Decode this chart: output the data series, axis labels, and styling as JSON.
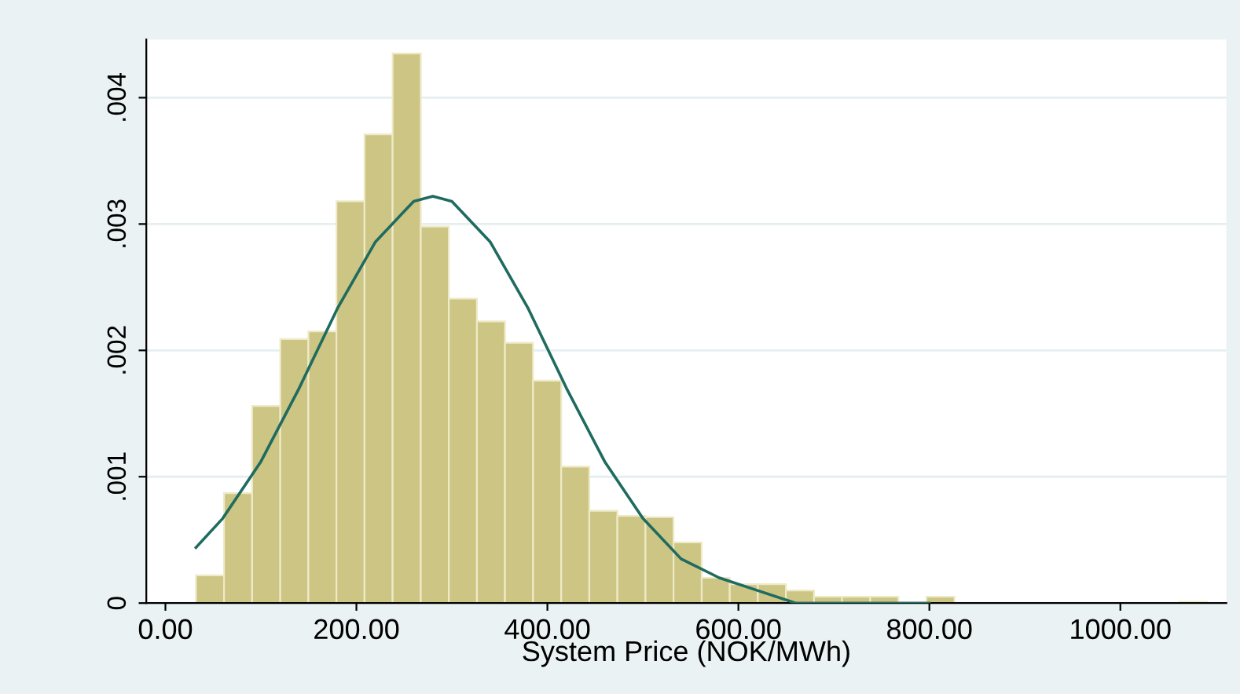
{
  "chart_data": {
    "type": "histogram",
    "xlabel": "System Price (NOK/MWh)",
    "bins": [
      32,
      61.4,
      90.8,
      120.3,
      149.7,
      179.1,
      208.5,
      237.9,
      267.4,
      296.8,
      326.2,
      355.6,
      385.0,
      414.5,
      443.9,
      473.3,
      502.7,
      532.1,
      561.6,
      591.0,
      620.4,
      649.8,
      679.2,
      708.7,
      738.1,
      767.5,
      796.9,
      826.3,
      855.8,
      885.2,
      914.6,
      944.0,
      973.4,
      1002.9,
      1032.3,
      1061.7,
      1091.1
    ],
    "values": [
      0.00022,
      0.00087,
      0.00156,
      0.00209,
      0.00215,
      0.00318,
      0.00371,
      0.00435,
      0.00298,
      0.00241,
      0.00223,
      0.00206,
      0.00176,
      0.00108,
      0.00073,
      0.00069,
      0.00068,
      0.00048,
      0.0002,
      0.00015,
      0.00015,
      0.0001,
      5e-05,
      5e-05,
      5e-05,
      0,
      5e-05,
      0,
      0,
      0,
      0,
      0,
      0,
      0,
      0,
      1e-05
    ],
    "color": "#cdc584",
    "series": [
      {
        "type": "line",
        "color": "#1f6b60",
        "x": [
          32,
          60,
          100,
          140,
          180,
          220,
          260,
          280,
          300,
          340,
          380,
          420,
          460,
          500,
          540,
          580,
          620,
          660,
          700,
          750,
          800
        ],
        "values": [
          0.00044,
          0.00067,
          0.00112,
          0.0017,
          0.00233,
          0.00286,
          0.00318,
          0.00322,
          0.00318,
          0.00286,
          0.00233,
          0.0017,
          0.00112,
          0.00067,
          0.00035,
          0.0002,
          0.0001,
          0,
          0,
          0,
          0
        ]
      }
    ],
    "xlim": [
      -20,
      1111
    ],
    "ylim": [
      0,
      0.00446
    ],
    "xticks": [
      {
        "value": 0,
        "label": "0.00"
      },
      {
        "value": 200,
        "label": "200.00"
      },
      {
        "value": 400,
        "label": "400.00"
      },
      {
        "value": 600,
        "label": "600.00"
      },
      {
        "value": 800,
        "label": "800.00"
      },
      {
        "value": 1000,
        "label": "1000.00"
      }
    ],
    "yticks": [
      0,
      {
        "value": 0.001,
        "label": ".001"
      },
      {
        "value": 0.002,
        "label": ".002"
      },
      {
        "value": 0.003,
        "label": ".003"
      },
      {
        "value": 0.004,
        "label": ".004"
      }
    ],
    "grid": "y"
  }
}
